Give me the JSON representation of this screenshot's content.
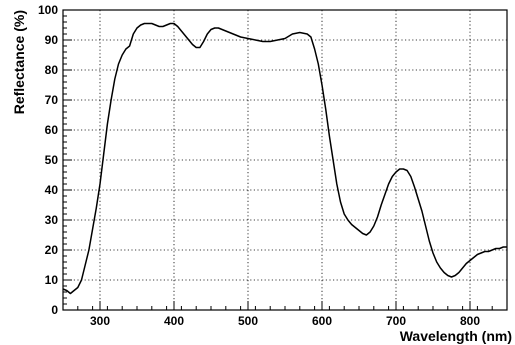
{
  "chart_data": {
    "type": "line",
    "title": "",
    "xlabel": "Wavelength (nm)",
    "ylabel": "Reflectance (%)",
    "xlim": [
      250,
      850
    ],
    "ylim": [
      0,
      100
    ],
    "x_ticks": [
      300,
      400,
      500,
      600,
      700,
      800
    ],
    "y_ticks": [
      0,
      10,
      20,
      30,
      40,
      50,
      60,
      70,
      80,
      90,
      100
    ],
    "x_tick_labels": [
      "300",
      "400",
      "500",
      "600",
      "700",
      "800"
    ],
    "y_tick_labels": [
      "0",
      "10",
      "20",
      "30",
      "40",
      "50",
      "60",
      "70",
      "80",
      "90",
      "100"
    ],
    "grid": true,
    "line_color": "#000000",
    "series": [
      {
        "x": [
          250,
          255,
          260,
          265,
          270,
          275,
          280,
          285,
          290,
          295,
          300,
          305,
          310,
          315,
          320,
          325,
          330,
          335,
          340,
          345,
          350,
          355,
          360,
          365,
          370,
          375,
          380,
          385,
          390,
          395,
          400,
          405,
          410,
          415,
          420,
          425,
          430,
          435,
          440,
          445,
          450,
          455,
          460,
          465,
          470,
          475,
          480,
          490,
          500,
          510,
          520,
          530,
          540,
          550,
          560,
          570,
          580,
          585,
          590,
          595,
          600,
          605,
          610,
          615,
          620,
          625,
          630,
          635,
          640,
          645,
          650,
          655,
          660,
          665,
          670,
          675,
          680,
          685,
          690,
          695,
          700,
          705,
          710,
          715,
          720,
          725,
          730,
          735,
          740,
          745,
          750,
          755,
          760,
          765,
          770,
          775,
          780,
          785,
          790,
          795,
          800,
          805,
          810,
          815,
          820,
          825,
          830,
          835,
          840,
          845,
          850
        ],
        "y": [
          7,
          6.5,
          5.5,
          6.5,
          7.5,
          10,
          15,
          20,
          27,
          34,
          42,
          52,
          62,
          70,
          77,
          82,
          85,
          87,
          88,
          92,
          94,
          95,
          95.5,
          95.5,
          95.5,
          95,
          94.5,
          94.5,
          95,
          95.5,
          95.5,
          94.5,
          93,
          91.5,
          90,
          88.5,
          87.5,
          87.5,
          89.5,
          92,
          93.5,
          94,
          94,
          93.5,
          93,
          92.5,
          92,
          91,
          90.5,
          90,
          89.5,
          89.5,
          90,
          90.5,
          92,
          92.5,
          92,
          91,
          87,
          82,
          75,
          67,
          58,
          50,
          42,
          36,
          32,
          30,
          28.5,
          27.5,
          26.5,
          25.5,
          25,
          26,
          28,
          31,
          35,
          38.5,
          42,
          44.5,
          46,
          47,
          47,
          46.5,
          44.5,
          41,
          37,
          33,
          28,
          23,
          19,
          16,
          14,
          12.5,
          11.5,
          11,
          11.5,
          12.5,
          14,
          15.5,
          16.5,
          17.5,
          18.5,
          19,
          19.5,
          19.5,
          20,
          20.5,
          20.5,
          21,
          21
        ]
      }
    ]
  }
}
